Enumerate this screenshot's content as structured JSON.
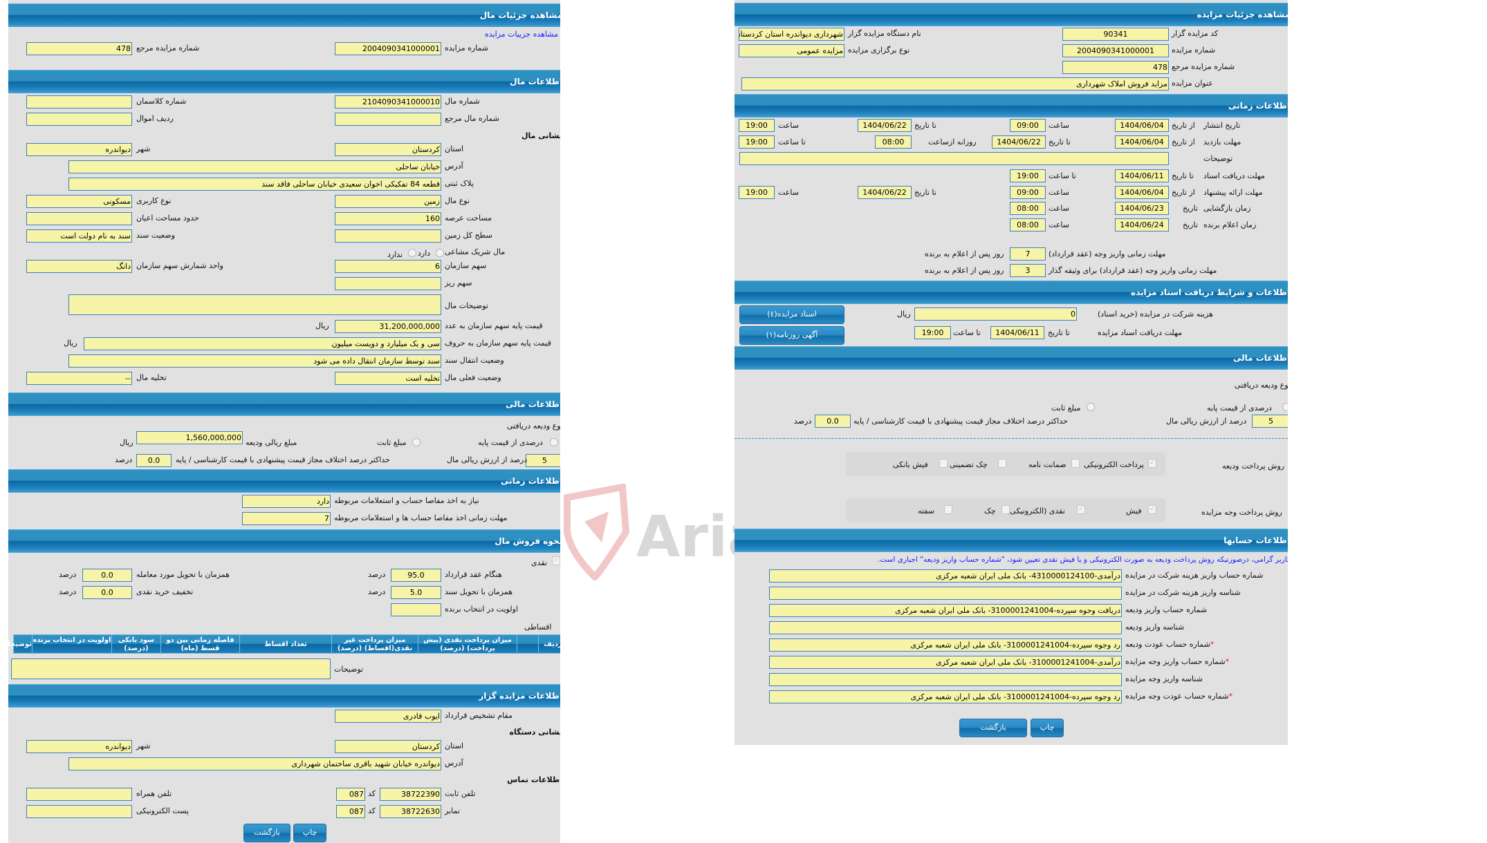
{
  "colors": {
    "header": "#1a7db8",
    "field": "#f7f4a8",
    "field_border": "#3b7fc0",
    "panel": "#e1e1e1",
    "link": "#1a1aff",
    "required": "#e02020"
  },
  "watermark": "AriaTender.neT",
  "left": {
    "title": "مشاهده جزئیات مال",
    "link": "مشاهده جزییات مزایده",
    "auction_no": {
      "label": "شماره مزایده",
      "value": "2004090341000001"
    },
    "auction_ref": {
      "label": "شماره مزایده مرجع",
      "value": "478"
    },
    "property_section": "اطلاعات مال",
    "mal_no": {
      "label": "شماره مال",
      "value": "2104090341000010"
    },
    "kelaseman": {
      "label": "شماره کلاسمان",
      "value": ""
    },
    "mal_ref": {
      "label": "شماره مال مرجع",
      "value": ""
    },
    "radif": {
      "label": "ردیف اموال",
      "value": ""
    },
    "address_heading": "نشانی مال",
    "ostan": {
      "label": "استان",
      "value": "کردستان"
    },
    "shahr": {
      "label": "شهر",
      "value": "دیواندره"
    },
    "address": {
      "label": "آدرس",
      "value": "خیابان ساحلی"
    },
    "plak": {
      "label": "پلاک ثبتی",
      "value": "قطعه 84 تفکیکی اخوان سعیدی خیابان ساحلی فاقد سند"
    },
    "type": {
      "label": "نوع مال",
      "value": "زمین"
    },
    "usage": {
      "label": "نوع کاربری",
      "value": "مسکونی"
    },
    "area": {
      "label": "مساحت عرصه",
      "value": "160"
    },
    "ayan": {
      "label": "حدود مساحت اعیان",
      "value": ""
    },
    "total_land": {
      "label": "سطح کل زمین",
      "value": ""
    },
    "deed_status": {
      "label": "وضعیت سند",
      "value": "سند به نام دولت است"
    },
    "shared": {
      "label": "مال شریک مشاعی",
      "opt_yes": "دارد",
      "opt_no": "ندارد"
    },
    "share": {
      "label": "سهم سازمان",
      "value": "6"
    },
    "share_unit": {
      "label": "واحد شمارش سهم سازمان",
      "value": "دانگ"
    },
    "sub_share": {
      "label": "سهم ریز",
      "value": ""
    },
    "desc": {
      "label": "توضیحات مال",
      "value": ""
    },
    "price_num": {
      "label": "قیمت پایه سهم سازمان به عدد",
      "value": "31,200,000,000",
      "unit": "ریال"
    },
    "price_words": {
      "label": "قیمت پایه سهم سازمان به حروف",
      "value": "سی و یک میلیارد و دویست میلیون",
      "unit": "ریال"
    },
    "transfer": {
      "label": "وضعیت انتقال سند",
      "value": "سند توسط سازمان انتقال داده می شود"
    },
    "current": {
      "label": "وضعیت فعلی مال",
      "value": "تخلیه است"
    },
    "evac": {
      "label": "تخلیه مال",
      "value": "--"
    },
    "financial_section": "اطلاعات مالی",
    "deposit_type": "نوع ودیعه دریافتی",
    "opt_percent": "درصدی از قیمت پایه",
    "opt_fixed": "مبلغ ثابت",
    "deposit_amount": {
      "label": "مبلغ ریالی ودیعه",
      "value": "1,560,000,000",
      "unit": "ریال"
    },
    "deposit_pct": {
      "label": "درصد از ارزش ریالی مال",
      "value": "5"
    },
    "max_diff": {
      "label": "حداکثر درصد اختلاف مجاز قیمت پیشنهادی با قیمت کارشناسی / پایه",
      "value": "0.0",
      "unit": "درصد"
    },
    "time_section": "اطلاعات زمانی",
    "need_clearance": {
      "label": "نیاز به اخذ مفاصا حساب و استعلامات مربوطه",
      "value": "دارد"
    },
    "clearance_deadline": {
      "label": "مهلت زمانی اخذ مفاصا حساب ها و استعلامات مربوطه",
      "value": "7"
    },
    "sale_section": "نحوه فروش مال",
    "cash": "نقدی",
    "on_contract": {
      "label": "هنگام عقد قرارداد",
      "value": "95.0",
      "unit": "درصد"
    },
    "on_item_delivery": {
      "label": "همزمان با تحویل مورد معامله",
      "value": "0.0",
      "unit": "درصد"
    },
    "on_deed_delivery": {
      "label": "همزمان با تحویل سند",
      "value": "5.0",
      "unit": "درصد"
    },
    "cash_discount": {
      "label": "تخفیف خرید نقدی",
      "value": "0.0",
      "unit": "درصد"
    },
    "winner_priority": {
      "label": "اولویت در انتخاب برنده",
      "value": ""
    },
    "installment": "اقساطی",
    "table_headers": [
      "ردیف",
      "",
      "میزان پرداخت نقدی (پیش پرداخت) (درصد)",
      "میزان پرداخت غیر نقدی(اقساط) (درصد)",
      "تعداد اقساط",
      "فاصله زمانی بین دو قسط (ماه)",
      "سود بانکی (درصد)",
      "اولویت در انتخاب برنده",
      "توضیحات"
    ],
    "notes": {
      "label": "توضیحات",
      "value": ""
    },
    "auctioneer_section": "اطلاعات مزایده گزار",
    "authority": {
      "label": "مقام تشخیص قرارداد",
      "value": "ایوب قادری"
    },
    "org_address_heading": "نشانی دستگاه",
    "org_ostan": {
      "label": "استان",
      "value": "کردستان"
    },
    "org_shahr": {
      "label": "شهر",
      "value": "دیواندره"
    },
    "org_address": {
      "label": "آدرس",
      "value": "دیواندره خیابان شهید باقری ساختمان شهرداری"
    },
    "contact_heading": "اطلاعات تماس",
    "phone": {
      "label": "تلفن ثابت",
      "value": "38722390",
      "code_label": "کد",
      "code": "087"
    },
    "fax": {
      "label": "نمابر",
      "value": "38722630",
      "code_label": "کد",
      "code": "087"
    },
    "mobile": {
      "label": "تلفن همراه",
      "value": ""
    },
    "email": {
      "label": "پست الکترونیکی",
      "value": ""
    },
    "print": "چاپ",
    "back": "بازگشت"
  },
  "right": {
    "title": "مشاهده جزئیات مزایده",
    "code": {
      "label": "کد مزایده گزار",
      "value": "90341"
    },
    "org": {
      "label": "نام دستگاه مزایده گزار",
      "value": "شهرداری دیواندره استان کردستان"
    },
    "auction_no": {
      "label": "شماره مزایده",
      "value": "2004090341000001"
    },
    "hold_type": {
      "label": "نوع برگزاری مزایده",
      "value": "مزایده عمومی"
    },
    "auction_ref": {
      "label": "شماره مزایده مرجع",
      "value": "478"
    },
    "auction_title": {
      "label": "عنوان مزایده",
      "value": "مزاید فروش املاک شهرداری"
    },
    "time_section": "اطلاعات زمانی",
    "from_date": "از تاریخ",
    "to_date": "تا تاریخ",
    "date": "تاریخ",
    "hour": "ساعت",
    "to_hour": "تا ساعت",
    "daily_from": "روزانه ازساعت",
    "publish": {
      "label": "تاریخ انتشار",
      "from": "1404/06/04",
      "from_time": "09:00",
      "to": "1404/06/22",
      "to_time": "19:00"
    },
    "visit": {
      "label": "مهلت بازدید",
      "from": "1404/06/04",
      "to": "1404/06/22",
      "daily_from": "08:00",
      "to_time": "19:00"
    },
    "time_desc": {
      "label": "توضیحات",
      "value": ""
    },
    "docs_deadline": {
      "label": "مهلت دریافت اسناد",
      "to": "1404/06/11",
      "to_time": "19:00"
    },
    "bid": {
      "label": "مهلت ارائه پیشنهاد",
      "from": "1404/06/04",
      "from_time": "09:00",
      "to": "1404/06/22",
      "to_time": "19:00"
    },
    "opening": {
      "label": "زمان بازگشایی",
      "date": "1404/06/23",
      "time": "08:00"
    },
    "winner": {
      "label": "زمان اعلام برنده",
      "date": "1404/06/24",
      "time": "08:00"
    },
    "pay_deadline": {
      "label": "مهلت زمانی واریز وجه (عقد قرارداد)",
      "value": "7",
      "suffix": "روز پس از اعلام به برنده"
    },
    "pay_deadline_pledge": {
      "label": "مهلت زمانی واریز وجه (عقد قرارداد) برای وثیقه گذار",
      "value": "3",
      "suffix": "روز پس از اعلام به برنده"
    },
    "docs_section": "اطلاعات و شرایط دریافت اسناد مزایده",
    "fee": {
      "label": "هزینه شرکت در مزایده (خرید اسناد)",
      "value": "0",
      "unit": "ریال"
    },
    "docs_button": "اسناد مزایده(٤)",
    "docs_receive": {
      "label": "مهلت دریافت اسناد مزایده",
      "to_label": "تا تاریخ",
      "to": "1404/06/11",
      "time_label": "تا ساعت",
      "time": "19:00"
    },
    "ad_button": "آگهی روزنامه(١)",
    "financial_section": "اطلاعات مالی",
    "deposit_type": "نوع ودیعه دریافتی",
    "opt_percent": "درصدی از قیمت پایه",
    "opt_fixed": "مبلغ ثابت",
    "deposit_pct": {
      "label": "درصد از ارزش ریالی مال",
      "value": "5"
    },
    "max_diff": {
      "label": "حداکثر درصد اختلاف مجاز قیمت پیشنهادی با قیمت کارشناسی / پایه",
      "value": "0.0",
      "unit": "درصد"
    },
    "deposit_methods": {
      "label": "روش پرداخت ودیعه",
      "items": [
        {
          "label": "پرداخت الکترونیکی",
          "checked": true
        },
        {
          "label": "ضمانت نامه",
          "checked": false
        },
        {
          "label": "چک تضمینی",
          "checked": false
        },
        {
          "label": "فیش بانکی",
          "checked": false
        }
      ]
    },
    "payment_methods": {
      "label": "روش پرداخت وجه مزایده",
      "items": [
        {
          "label": "فیش",
          "checked": true
        },
        {
          "label": "نقدی (الکترونیکی)",
          "checked": true
        },
        {
          "label": "چک",
          "checked": false
        },
        {
          "label": "سفته",
          "checked": false
        }
      ]
    },
    "accounts_section": "اطلاعات حسابها",
    "notice": "کاربر گرامی، درصورتیکه روش پرداخت ودیعه به صورت الکترونیکی و یا فیش نقدی تعیین شود، \"شماره حساب واریز ودیعه\" اجباری است.",
    "accounts": [
      {
        "label": "شماره حساب واریز هزینه شرکت در مزایده",
        "value": "درآمدی-310000124100‏4- بانک ملی ایران شعبه مرکزی",
        "required": false
      },
      {
        "label": "شناسه واریز هزینه شرکت در مزایده",
        "value": "",
        "required": false
      },
      {
        "label": "شماره حساب واریز ودیعه",
        "value": "دریافت وجوه سپرده-3100001241004- بانک ملی ایران شعبه مرکزی",
        "required": false
      },
      {
        "label": "شناسه واریز ودیعه",
        "value": "",
        "required": false
      },
      {
        "label": "شماره حساب عودت ودیعه",
        "value": "رد وجوه سپرده-3100001241004- بانک ملی ایران شعبه مرکزی",
        "required": true
      },
      {
        "label": "شماره حساب واریز وجه مزایده",
        "value": "درآمدی-3100001241004- بانک ملی ایران شعبه مرکزی",
        "required": true
      },
      {
        "label": "شناسه واریز وجه مزایده",
        "value": "",
        "required": false
      },
      {
        "label": "شماره حساب عودت وجه مزایده",
        "value": "رد وجوه سپرده-3100001241004- بانک ملی ایران شعبه مرکزی",
        "required": true
      }
    ],
    "required_mark": "*",
    "print": "چاپ",
    "back": "بازگشت"
  }
}
